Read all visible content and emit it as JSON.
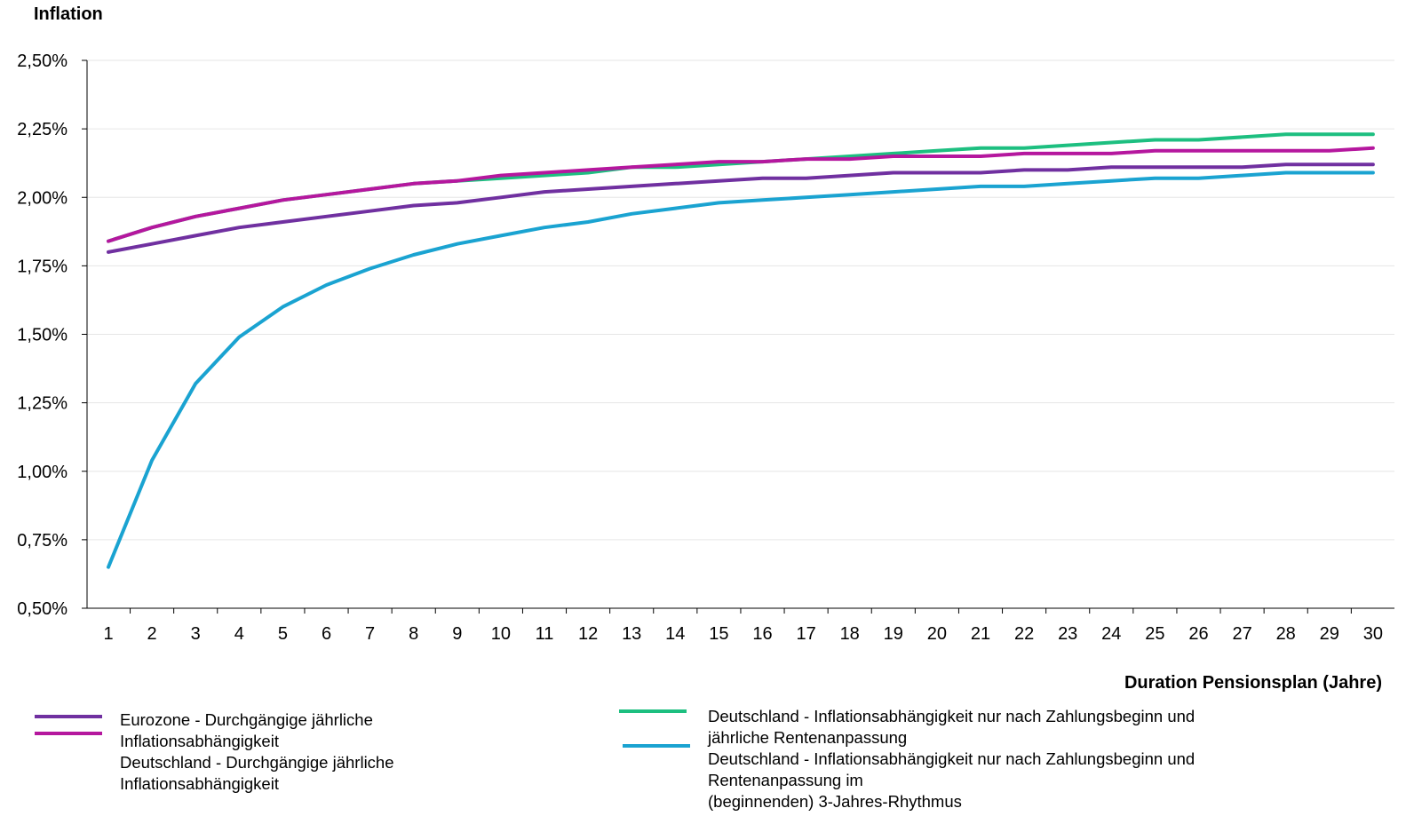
{
  "chart_data": {
    "type": "line",
    "ylabel": "Inflation",
    "xlabel": "Duration Pensionsplan (Jahre)",
    "ylim": [
      0.5,
      2.5
    ],
    "yticks": [
      "0,50%",
      "0,75%",
      "1,00%",
      "1,25%",
      "1,50%",
      "1,75%",
      "2,00%",
      "2,25%",
      "2,50%"
    ],
    "ytick_values": [
      0.5,
      0.75,
      1.0,
      1.25,
      1.5,
      1.75,
      2.0,
      2.25,
      2.5
    ],
    "x": [
      1,
      2,
      3,
      4,
      5,
      6,
      7,
      8,
      9,
      10,
      11,
      12,
      13,
      14,
      15,
      16,
      17,
      18,
      19,
      20,
      21,
      22,
      23,
      24,
      25,
      26,
      27,
      28,
      29,
      30
    ],
    "grid": true,
    "legend_position": "bottom",
    "series": [
      {
        "name": "Eurozone - Durchgängige jährliche Inflationsabhängigkeit",
        "color": "#7030A0",
        "values": [
          1.8,
          1.83,
          1.86,
          1.89,
          1.91,
          1.93,
          1.95,
          1.97,
          1.98,
          2.0,
          2.02,
          2.03,
          2.04,
          2.05,
          2.06,
          2.07,
          2.07,
          2.08,
          2.09,
          2.09,
          2.09,
          2.1,
          2.1,
          2.11,
          2.11,
          2.11,
          2.11,
          2.12,
          2.12,
          2.12
        ]
      },
      {
        "name": "Deutschland - Durchgängige jährliche Inflationsabhängigkeit",
        "color": "#B5179E",
        "values": [
          1.84,
          1.89,
          1.93,
          1.96,
          1.99,
          2.01,
          2.03,
          2.05,
          2.06,
          2.08,
          2.09,
          2.1,
          2.11,
          2.12,
          2.13,
          2.13,
          2.14,
          2.14,
          2.15,
          2.15,
          2.15,
          2.16,
          2.16,
          2.16,
          2.17,
          2.17,
          2.17,
          2.17,
          2.17,
          2.18
        ]
      },
      {
        "name": "Deutschland - Inflationsabhängigkeit nur nach Zahlungsbeginn und jährliche Rentenanpassung",
        "color": "#1DBF80",
        "values": [
          1.84,
          1.89,
          1.93,
          1.96,
          1.99,
          2.01,
          2.03,
          2.05,
          2.06,
          2.07,
          2.08,
          2.09,
          2.11,
          2.11,
          2.12,
          2.13,
          2.14,
          2.15,
          2.16,
          2.17,
          2.18,
          2.18,
          2.19,
          2.2,
          2.21,
          2.21,
          2.22,
          2.23,
          2.23,
          2.23
        ]
      },
      {
        "name": "Deutschland - Inflationsabhängigkeit nur nach Zahlungsbeginn und Rentenanpassung im (beginnenden) 3-Jahres-Rhythmus",
        "color": "#1AA3D1",
        "values": [
          0.65,
          1.04,
          1.32,
          1.49,
          1.6,
          1.68,
          1.74,
          1.79,
          1.83,
          1.86,
          1.89,
          1.91,
          1.94,
          1.96,
          1.98,
          1.99,
          2.0,
          2.01,
          2.02,
          2.03,
          2.04,
          2.04,
          2.05,
          2.06,
          2.07,
          2.07,
          2.08,
          2.09,
          2.09,
          2.09
        ]
      }
    ]
  },
  "legend": {
    "left": {
      "lines": [
        "Eurozone - Durchgängige jährliche",
        "Inflationsabhängigkeit",
        "Deutschland - Durchgängige jährliche",
        "Inflationsabhängigkeit"
      ]
    },
    "right": {
      "lines": [
        "Deutschland - Inflationsabhängigkeit nur nach Zahlungsbeginn und",
        "jährliche Rentenanpassung",
        "Deutschland - Inflationsabhängigkeit nur nach Zahlungsbeginn und",
        "Rentenanpassung im",
        "(beginnenden) 3-Jahres-Rhythmus"
      ]
    }
  }
}
